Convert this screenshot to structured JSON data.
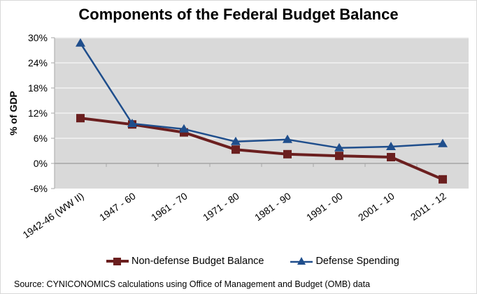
{
  "chart_data": {
    "type": "line",
    "title": "Components of the Federal Budget Balance",
    "xlabel": "",
    "ylabel": "% of GDP",
    "categories": [
      "1942-46 (WW II)",
      "1947 - 60",
      "1961 - 70",
      "1971 - 80",
      "1981 - 90",
      "1991 - 00",
      "2001 - 10",
      "2011 - 12"
    ],
    "ylim": [
      -6,
      30
    ],
    "yticks": [
      -6,
      0,
      6,
      12,
      18,
      24,
      30
    ],
    "ytick_labels": [
      "-6%",
      "0%",
      "6%",
      "12%",
      "18%",
      "24%",
      "30%"
    ],
    "grid": true,
    "legend_position": "bottom",
    "series": [
      {
        "name": "Non-defense Budget Balance",
        "color": "#6b1f1f",
        "marker": "square",
        "values": [
          10.8,
          9.3,
          7.4,
          3.3,
          2.2,
          1.8,
          1.5,
          -3.8
        ]
      },
      {
        "name": "Defense Spending",
        "color": "#1f4e8c",
        "marker": "triangle",
        "values": [
          28.7,
          9.5,
          8.2,
          5.2,
          5.7,
          3.7,
          4.0,
          4.7
        ]
      }
    ],
    "source": "Source: CYNICONOMICS calculations using Office of Management and Budget (OMB) data"
  }
}
